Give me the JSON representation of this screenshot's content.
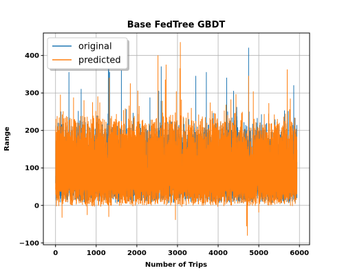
{
  "chart_data": {
    "type": "line",
    "title": "Base FedTree GBDT",
    "xlabel": "Number of Trips",
    "ylabel": "Range",
    "xlim": [
      -300,
      6250
    ],
    "ylim": [
      -105,
      460
    ],
    "xticks": [
      0,
      1000,
      2000,
      3000,
      4000,
      5000,
      6000
    ],
    "yticks": [
      -100,
      0,
      100,
      200,
      300,
      400
    ],
    "grid": true,
    "legend_position": "top-left",
    "n_points": 5940,
    "series": [
      {
        "name": "original",
        "color": "#1f77b4",
        "typical_range": [
          0,
          220
        ],
        "peaks": [
          {
            "x": 1310,
            "y": 395
          },
          {
            "x": 1300,
            "y": 375
          },
          {
            "x": 1330,
            "y": 355
          },
          {
            "x": 1620,
            "y": 360
          },
          {
            "x": 2600,
            "y": 370
          },
          {
            "x": 3710,
            "y": 355
          },
          {
            "x": 4750,
            "y": 420
          },
          {
            "x": 3450,
            "y": 345
          },
          {
            "x": 330,
            "y": 355
          },
          {
            "x": 4210,
            "y": 340
          },
          {
            "x": 4380,
            "y": 305
          },
          {
            "x": 630,
            "y": 310
          },
          {
            "x": 2540,
            "y": 305
          },
          {
            "x": 5860,
            "y": 320
          }
        ]
      },
      {
        "name": "predicted",
        "color": "#ff7f0e",
        "typical_range": [
          -10,
          240
        ],
        "peaks": [
          {
            "x": 3070,
            "y": 435
          },
          {
            "x": 2520,
            "y": 400
          },
          {
            "x": 2720,
            "y": 375
          },
          {
            "x": 2700,
            "y": 335
          },
          {
            "x": 5700,
            "y": 362
          },
          {
            "x": 3060,
            "y": 365
          },
          {
            "x": 1320,
            "y": 340
          },
          {
            "x": 1840,
            "y": 325
          },
          {
            "x": 4750,
            "y": 345
          },
          {
            "x": 1040,
            "y": 290
          },
          {
            "x": 700,
            "y": 280
          },
          {
            "x": 120,
            "y": 295
          }
        ],
        "troughs": [
          {
            "x": 4720,
            "y": -80
          },
          {
            "x": 4700,
            "y": -55
          },
          {
            "x": 2950,
            "y": -38
          },
          {
            "x": 160,
            "y": -32
          },
          {
            "x": 1310,
            "y": -30
          },
          {
            "x": 5000,
            "y": -18
          },
          {
            "x": 780,
            "y": -25
          }
        ]
      }
    ]
  }
}
